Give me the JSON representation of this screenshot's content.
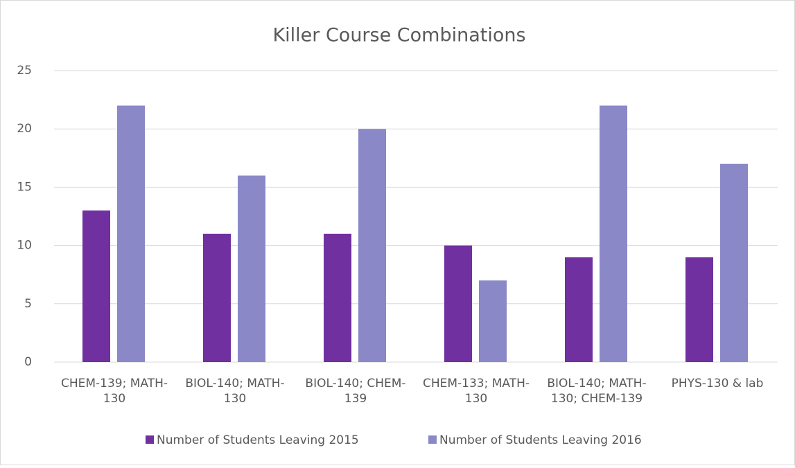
{
  "chart_data": {
    "type": "bar",
    "title": "Killer Course Combinations",
    "categories": [
      "CHEM-139; MATH-130",
      "BIOL-140; MATH-130",
      "BIOL-140; CHEM-139",
      "CHEM-133; MATH-130",
      "BIOL-140; MATH-130; CHEM-139",
      "PHYS-130 & lab"
    ],
    "series": [
      {
        "name": "Number of Students Leaving 2015",
        "color": "#7030a0",
        "values": [
          13,
          11,
          11,
          10,
          9,
          9
        ]
      },
      {
        "name": "Number of Students Leaving 2016",
        "color": "#8b88c8",
        "values": [
          22,
          16,
          20,
          7,
          22,
          17
        ]
      }
    ],
    "ylim": [
      0,
      25
    ],
    "yticks": [
      0,
      5,
      10,
      15,
      20,
      25
    ],
    "grid": true,
    "legend": "bottom"
  }
}
